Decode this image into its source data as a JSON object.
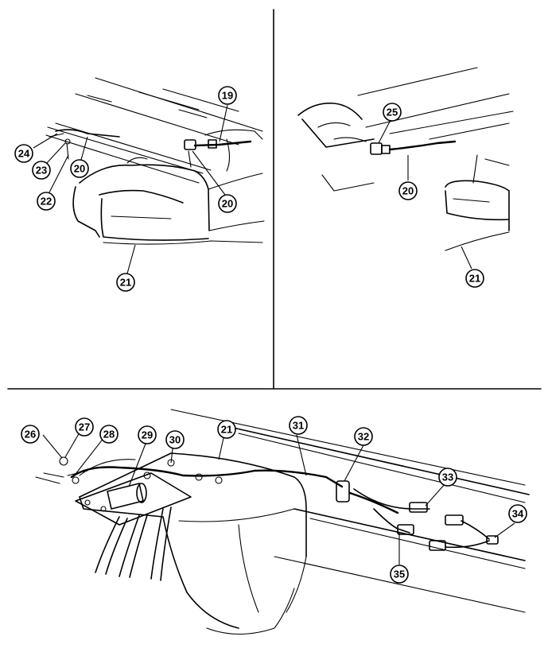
{
  "callouts": [
    {
      "id": "c19",
      "label": "19"
    },
    {
      "id": "c20a",
      "label": "20"
    },
    {
      "id": "c20b",
      "label": "20"
    },
    {
      "id": "c21a",
      "label": "21"
    },
    {
      "id": "c22",
      "label": "22"
    },
    {
      "id": "c23",
      "label": "23"
    },
    {
      "id": "c24",
      "label": "24"
    },
    {
      "id": "c25",
      "label": "25"
    },
    {
      "id": "c20c",
      "label": "20"
    },
    {
      "id": "c21b",
      "label": "21"
    },
    {
      "id": "c26",
      "label": "26"
    },
    {
      "id": "c27",
      "label": "27"
    },
    {
      "id": "c28",
      "label": "28"
    },
    {
      "id": "c29",
      "label": "29"
    },
    {
      "id": "c30",
      "label": "30"
    },
    {
      "id": "c21c",
      "label": "21"
    },
    {
      "id": "c31",
      "label": "31"
    },
    {
      "id": "c32",
      "label": "32"
    },
    {
      "id": "c33",
      "label": "33"
    },
    {
      "id": "c34",
      "label": "34"
    },
    {
      "id": "c35",
      "label": "35"
    }
  ]
}
